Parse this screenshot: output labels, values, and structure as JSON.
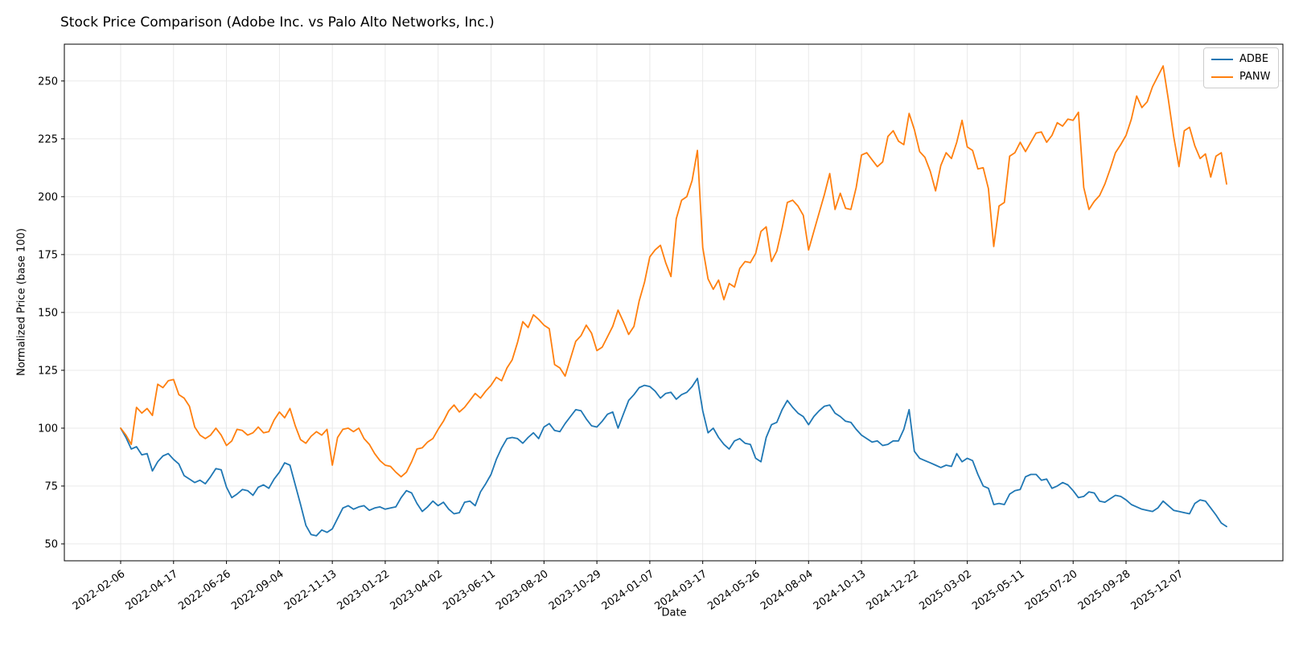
{
  "chart_data": {
    "type": "line",
    "title": "Stock Price Comparison (Adobe Inc. vs Palo Alto Networks, Inc.)",
    "xlabel": "Date",
    "ylabel": "Normalized Price (base 100)",
    "grid": true,
    "legend_position": "upper right",
    "frequency": "weekly",
    "start_date": "2022-02-06",
    "x_tick_interval_weeks": 10,
    "x_tick_labels": [
      "2022-02-06",
      "2022-04-17",
      "2022-06-26",
      "2022-09-04",
      "2022-11-13",
      "2023-01-22",
      "2023-04-02",
      "2023-06-11",
      "2023-08-20",
      "2023-10-29",
      "2024-01-07",
      "2024-03-17",
      "2024-05-26",
      "2024-08-04",
      "2024-10-13",
      "2024-12-22",
      "2025-03-02",
      "2025-05-11",
      "2025-07-20",
      "2025-09-28",
      "2025-12-07"
    ],
    "y_ticks": [
      50,
      75,
      100,
      125,
      150,
      175,
      200,
      225,
      250
    ],
    "ylim": [
      42.7,
      265.9
    ],
    "series": [
      {
        "name": "ADBE",
        "color": "#1f77b4",
        "values": [
          100,
          96,
          91,
          92,
          88.5,
          89,
          81.5,
          85.5,
          88,
          89,
          86.5,
          84.5,
          79.5,
          78,
          76.5,
          77.5,
          76,
          79,
          82.5,
          82,
          74.5,
          70,
          71.5,
          73.5,
          73,
          71,
          74.5,
          75.5,
          74,
          78,
          81,
          85,
          84,
          75.5,
          67,
          58,
          54,
          53.5,
          56,
          55,
          56.5,
          61,
          65.5,
          66.5,
          65,
          66,
          66.5,
          64.5,
          65.5,
          66,
          65,
          65.5,
          66,
          70,
          73,
          72,
          67.5,
          64,
          66,
          68.5,
          66.5,
          68,
          65,
          63,
          63.5,
          68,
          68.5,
          66.5,
          72.5,
          76,
          80,
          86.5,
          91.5,
          95.5,
          96,
          95.5,
          93.5,
          96,
          98,
          95.5,
          100.5,
          102,
          99,
          98.5,
          102,
          105,
          108,
          107.5,
          104,
          101,
          100.5,
          103,
          106,
          107,
          100,
          106,
          112,
          114.5,
          117.5,
          118.5,
          118,
          116,
          113,
          115,
          115.5,
          112.5,
          114.5,
          115.5,
          118,
          121.5,
          107.5,
          98,
          100,
          96,
          93,
          91,
          94.5,
          95.5,
          93.5,
          93,
          87,
          85.5,
          96,
          101.5,
          102.5,
          108,
          112,
          109,
          106.5,
          105,
          101.5,
          105,
          107.5,
          109.5,
          110,
          106.5,
          105,
          103,
          102.5,
          99.5,
          97,
          95.5,
          94,
          94.5,
          92.5,
          93,
          94.5,
          94.5,
          99.5,
          108,
          90,
          87,
          86,
          85,
          84,
          83,
          84,
          83.5,
          89,
          85.5,
          87,
          86,
          80,
          75,
          74,
          67,
          67.5,
          67,
          71.5,
          73,
          73.5,
          79,
          80,
          80,
          77.5,
          78,
          74,
          75,
          76.5,
          75.5,
          73,
          70,
          70.5,
          72.5,
          72,
          68.5,
          68,
          69.5,
          71,
          70.5,
          69,
          67,
          66,
          65,
          64.5,
          64,
          65.5,
          68.5,
          66.5,
          64.5,
          64,
          63.5,
          63,
          67.5,
          69,
          68.5,
          65.5,
          62.5,
          59,
          57.5
        ]
      },
      {
        "name": "PANW",
        "color": "#ff7f0e",
        "values": [
          100,
          97,
          93,
          109,
          106.5,
          108.5,
          105.5,
          119,
          117.5,
          120.5,
          121,
          114.5,
          113,
          109.5,
          100.5,
          97,
          95.5,
          97,
          100,
          97,
          92.5,
          94.5,
          99.5,
          99,
          97,
          98,
          100.5,
          98,
          98.5,
          103.5,
          107,
          104.5,
          108.5,
          101,
          95,
          93.5,
          96.5,
          98.5,
          97,
          99.5,
          84,
          96,
          99.5,
          100,
          98.5,
          100,
          95.5,
          93,
          89,
          86,
          84,
          83.5,
          81,
          79,
          81,
          85.5,
          91,
          91.5,
          94,
          95.5,
          99.5,
          103,
          107.5,
          110,
          107,
          109,
          112,
          115,
          113,
          116,
          118.5,
          122,
          120.5,
          126,
          129.5,
          137,
          146,
          143.5,
          149,
          147,
          144.5,
          143,
          127.5,
          126,
          122.5,
          130,
          137.5,
          140,
          144.5,
          141,
          133.5,
          135,
          139.5,
          144,
          151,
          146,
          140.5,
          144,
          155,
          163,
          174,
          177,
          179,
          171.5,
          165.5,
          190.5,
          198.5,
          200,
          207,
          220,
          178,
          164.5,
          160,
          164,
          155.5,
          162.5,
          161,
          169,
          172,
          171.5,
          175.5,
          185,
          187,
          172,
          176.5,
          186.5,
          197.5,
          198.5,
          196,
          192,
          177,
          185,
          193,
          201,
          210,
          194.5,
          201.5,
          195,
          194.5,
          204,
          218,
          219,
          216,
          213,
          215,
          226,
          228.5,
          224,
          222.5,
          236,
          229,
          219.5,
          217,
          211,
          202.5,
          213.5,
          219,
          216.5,
          223.5,
          233,
          221.5,
          220,
          212,
          212.5,
          203.5,
          178.5,
          196,
          197.5,
          217.5,
          219,
          223.5,
          219.5,
          223.5,
          227.5,
          228,
          223.5,
          226.5,
          232,
          230.5,
          233.5,
          233,
          236.5,
          204,
          194.5,
          198,
          200.5,
          205.5,
          212,
          219,
          222.5,
          226.5,
          233.5,
          243.5,
          238.5,
          241,
          247.5,
          252,
          256.5,
          242,
          226,
          213,
          228.5,
          230,
          222,
          216.5,
          218.5,
          208.5,
          217.5,
          219,
          205.5
        ]
      }
    ]
  }
}
